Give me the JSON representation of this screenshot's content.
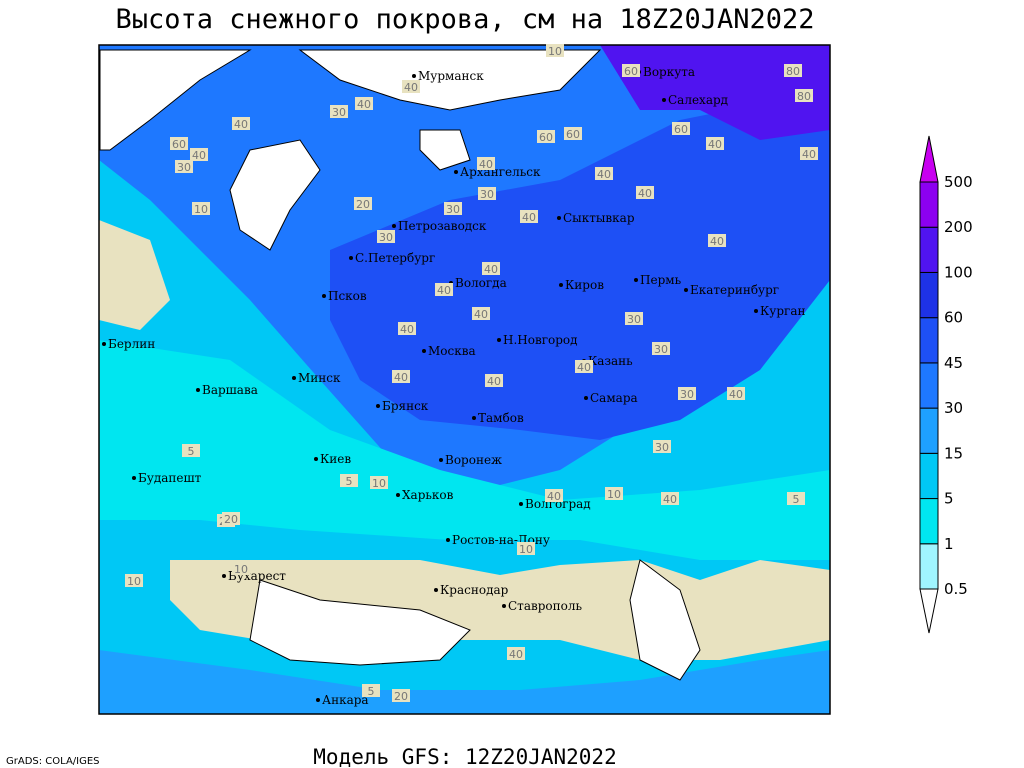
{
  "title": "Высота снежного покрова, см на 18Z20JAN2022",
  "footer": "Модель GFS: 12Z20JAN2022",
  "credit": "GrADS: COLA/IGES",
  "cities": [
    "Мурманск",
    "Воркута",
    "Салехард",
    "Архангельск",
    "Сыктывкар",
    "Петрозаводск",
    "С.Петербург",
    "Вологда",
    "Киров",
    "Пермь",
    "Екатеринбург",
    "Курган",
    "Псков",
    "Берлин",
    "Н.Новгород",
    "Москва",
    "Казань",
    "Минск",
    "Варшава",
    "Самара",
    "Брянск",
    "Тамбов",
    "Киев",
    "Воронеж",
    "Будапешт",
    "Харьков",
    "Волгоград",
    "Ростов-на-Дону",
    "Бухарест",
    "Краснодар",
    "Ставрополь",
    "Анкара"
  ],
  "contour_labels": [
    10,
    60,
    80,
    80,
    60,
    40,
    40,
    60,
    60,
    40,
    40,
    40,
    40,
    30,
    60,
    40,
    30,
    40,
    30,
    10,
    30,
    20,
    40,
    40,
    40,
    40,
    30,
    40,
    40,
    40,
    30,
    30,
    30,
    40,
    40,
    40,
    40,
    5,
    10,
    30,
    40,
    10,
    5,
    20,
    10,
    10,
    5,
    10,
    40,
    20,
    40,
    5,
    20
  ],
  "colorbar": {
    "levels": [
      0.5,
      1,
      5,
      15,
      30,
      45,
      60,
      100,
      200,
      500
    ],
    "colors": [
      "#ffffff",
      "#a0f5ff",
      "#00e6f0",
      "#00c8f5",
      "#1ea0ff",
      "#1e78ff",
      "#1e50f5",
      "#1e32e6",
      "#5014f0",
      "#8c00f0",
      "#c800f0"
    ]
  }
}
